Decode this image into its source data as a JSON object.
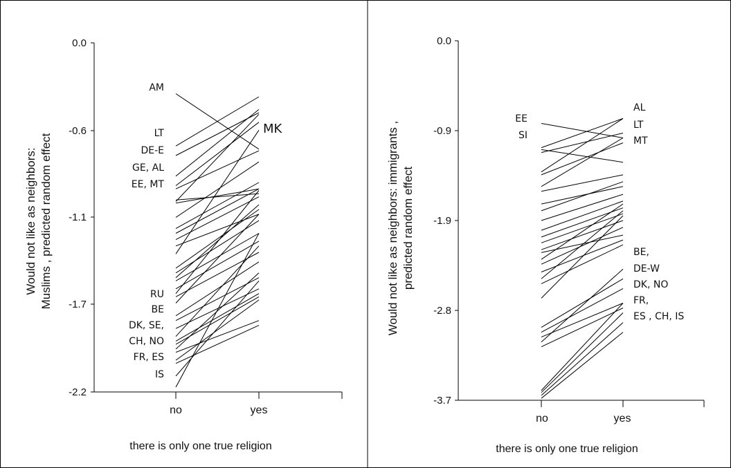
{
  "chart_data": [
    {
      "type": "line",
      "x_categories": [
        "no",
        "yes"
      ],
      "xlabel": "there is only one true religion",
      "ylabel_line1": "Would not like as neighbors:",
      "ylabel_line2": "Muslims , predicted random effect",
      "ylim": [
        -2.2,
        0.0
      ],
      "yticks": [
        "0.0",
        "-0.6",
        "-1.1",
        "-1.7",
        "-2.2"
      ],
      "ytick_values": [
        0.0,
        -0.6,
        -1.1,
        -1.7,
        -2.2
      ],
      "country_labels_left": [
        "AM",
        "LT",
        "DE-E",
        "GE, AL",
        "EE, MT",
        "RU",
        "BE",
        "DK, SE,",
        "CH, NO",
        "FR, ES",
        "IS"
      ],
      "country_labels_right": [
        "MK"
      ],
      "series": [
        {
          "values": [
            -0.32,
            -0.67
          ]
        },
        {
          "values": [
            -0.65,
            -0.34
          ]
        },
        {
          "values": [
            -0.71,
            -0.44
          ]
        },
        {
          "values": [
            -0.84,
            -0.42
          ]
        },
        {
          "values": [
            -0.9,
            -0.5
          ]
        },
        {
          "values": [
            -0.92,
            -0.68
          ]
        },
        {
          "values": [
            -1.0,
            -0.45
          ]
        },
        {
          "values": [
            -1.1,
            -0.75
          ]
        },
        {
          "values": [
            -0.99,
            -0.95
          ]
        },
        {
          "values": [
            -1.01,
            -0.92
          ]
        },
        {
          "values": [
            -1.17,
            -0.88
          ]
        },
        {
          "values": [
            -1.2,
            -0.92
          ]
        },
        {
          "values": [
            -1.24,
            -0.97
          ]
        },
        {
          "values": [
            -1.28,
            -1.08
          ]
        },
        {
          "values": [
            -1.33,
            -0.55
          ]
        },
        {
          "values": [
            -1.42,
            -1.05
          ]
        },
        {
          "values": [
            -1.45,
            -1.12
          ]
        },
        {
          "values": [
            -1.48,
            -1.02
          ]
        },
        {
          "values": [
            -1.5,
            -1.2
          ]
        },
        {
          "values": [
            -1.55,
            -1.25
          ]
        },
        {
          "values": [
            -1.58,
            -0.93
          ]
        },
        {
          "values": [
            -1.6,
            -1.32
          ]
        },
        {
          "values": [
            -1.64,
            -1.08
          ]
        },
        {
          "values": [
            -1.72,
            -1.38
          ]
        },
        {
          "values": [
            -1.75,
            -1.48
          ]
        },
        {
          "values": [
            -1.8,
            -1.55
          ]
        },
        {
          "values": [
            -1.85,
            -1.28
          ]
        },
        {
          "values": [
            -1.88,
            -1.58
          ]
        },
        {
          "values": [
            -1.9,
            -1.6
          ]
        },
        {
          "values": [
            -1.93,
            -1.45
          ]
        },
        {
          "values": [
            -2.0,
            -1.62
          ]
        },
        {
          "values": [
            -2.02,
            -1.78
          ]
        },
        {
          "values": [
            -2.1,
            -1.5
          ]
        },
        {
          "values": [
            -2.17,
            -1.2
          ]
        },
        {
          "values": [
            -1.95,
            -1.75
          ]
        }
      ]
    },
    {
      "type": "line",
      "x_categories": [
        "no",
        "yes"
      ],
      "xlabel": "there is only one true religion",
      "ylabel_line1": "Would not like as neighbors: immigrants ,",
      "ylabel_line2": "predicted random effect",
      "ylim": [
        -3.7,
        0.0
      ],
      "yticks": [
        "0.0",
        "-0.9",
        "-1.9",
        "-2.8",
        "-3.7"
      ],
      "ytick_values": [
        0.0,
        -0.9,
        -1.9,
        -2.8,
        -3.7
      ],
      "country_labels_left": [
        "EE",
        "SI"
      ],
      "country_labels_right": [
        "AL",
        "LT",
        "MT",
        "BE,",
        "DE-W",
        "DK, NO",
        "FR,",
        "ES , CH, IS"
      ],
      "series": [
        {
          "values": [
            -0.85,
            -1.0
          ]
        },
        {
          "values": [
            -1.1,
            -0.8
          ]
        },
        {
          "values": [
            -1.12,
            -1.25
          ]
        },
        {
          "values": [
            -1.15,
            -0.95
          ]
        },
        {
          "values": [
            -1.35,
            -0.8
          ]
        },
        {
          "values": [
            -1.38,
            -1.05
          ]
        },
        {
          "values": [
            -1.5,
            -1.0
          ]
        },
        {
          "values": [
            -1.55,
            -1.38
          ]
        },
        {
          "values": [
            -1.68,
            -1.5
          ]
        },
        {
          "values": [
            -1.75,
            -1.45
          ]
        },
        {
          "values": [
            -1.85,
            -1.58
          ]
        },
        {
          "values": [
            -1.95,
            -1.65
          ]
        },
        {
          "values": [
            -2.02,
            -1.72
          ]
        },
        {
          "values": [
            -2.08,
            -1.78
          ]
        },
        {
          "values": [
            -2.15,
            -1.85
          ]
        },
        {
          "values": [
            -2.18,
            -2.0
          ]
        },
        {
          "values": [
            -2.25,
            -1.68
          ]
        },
        {
          "values": [
            -2.3,
            -1.92
          ]
        },
        {
          "values": [
            -2.38,
            -2.05
          ]
        },
        {
          "values": [
            -2.45,
            -1.75
          ]
        },
        {
          "values": [
            -2.5,
            -2.1
          ]
        },
        {
          "values": [
            -2.65,
            -1.8
          ]
        },
        {
          "values": [
            -2.95,
            -2.45
          ]
        },
        {
          "values": [
            -3.0,
            -2.55
          ]
        },
        {
          "values": [
            -3.05,
            -2.7
          ]
        },
        {
          "values": [
            -3.1,
            -2.35
          ]
        },
        {
          "values": [
            -3.15,
            -2.75
          ]
        },
        {
          "values": [
            -3.6,
            -2.7
          ]
        },
        {
          "values": [
            -3.65,
            -2.9
          ]
        },
        {
          "values": [
            -3.68,
            -3.0
          ]
        },
        {
          "values": [
            -3.62,
            -2.8
          ]
        }
      ]
    }
  ]
}
